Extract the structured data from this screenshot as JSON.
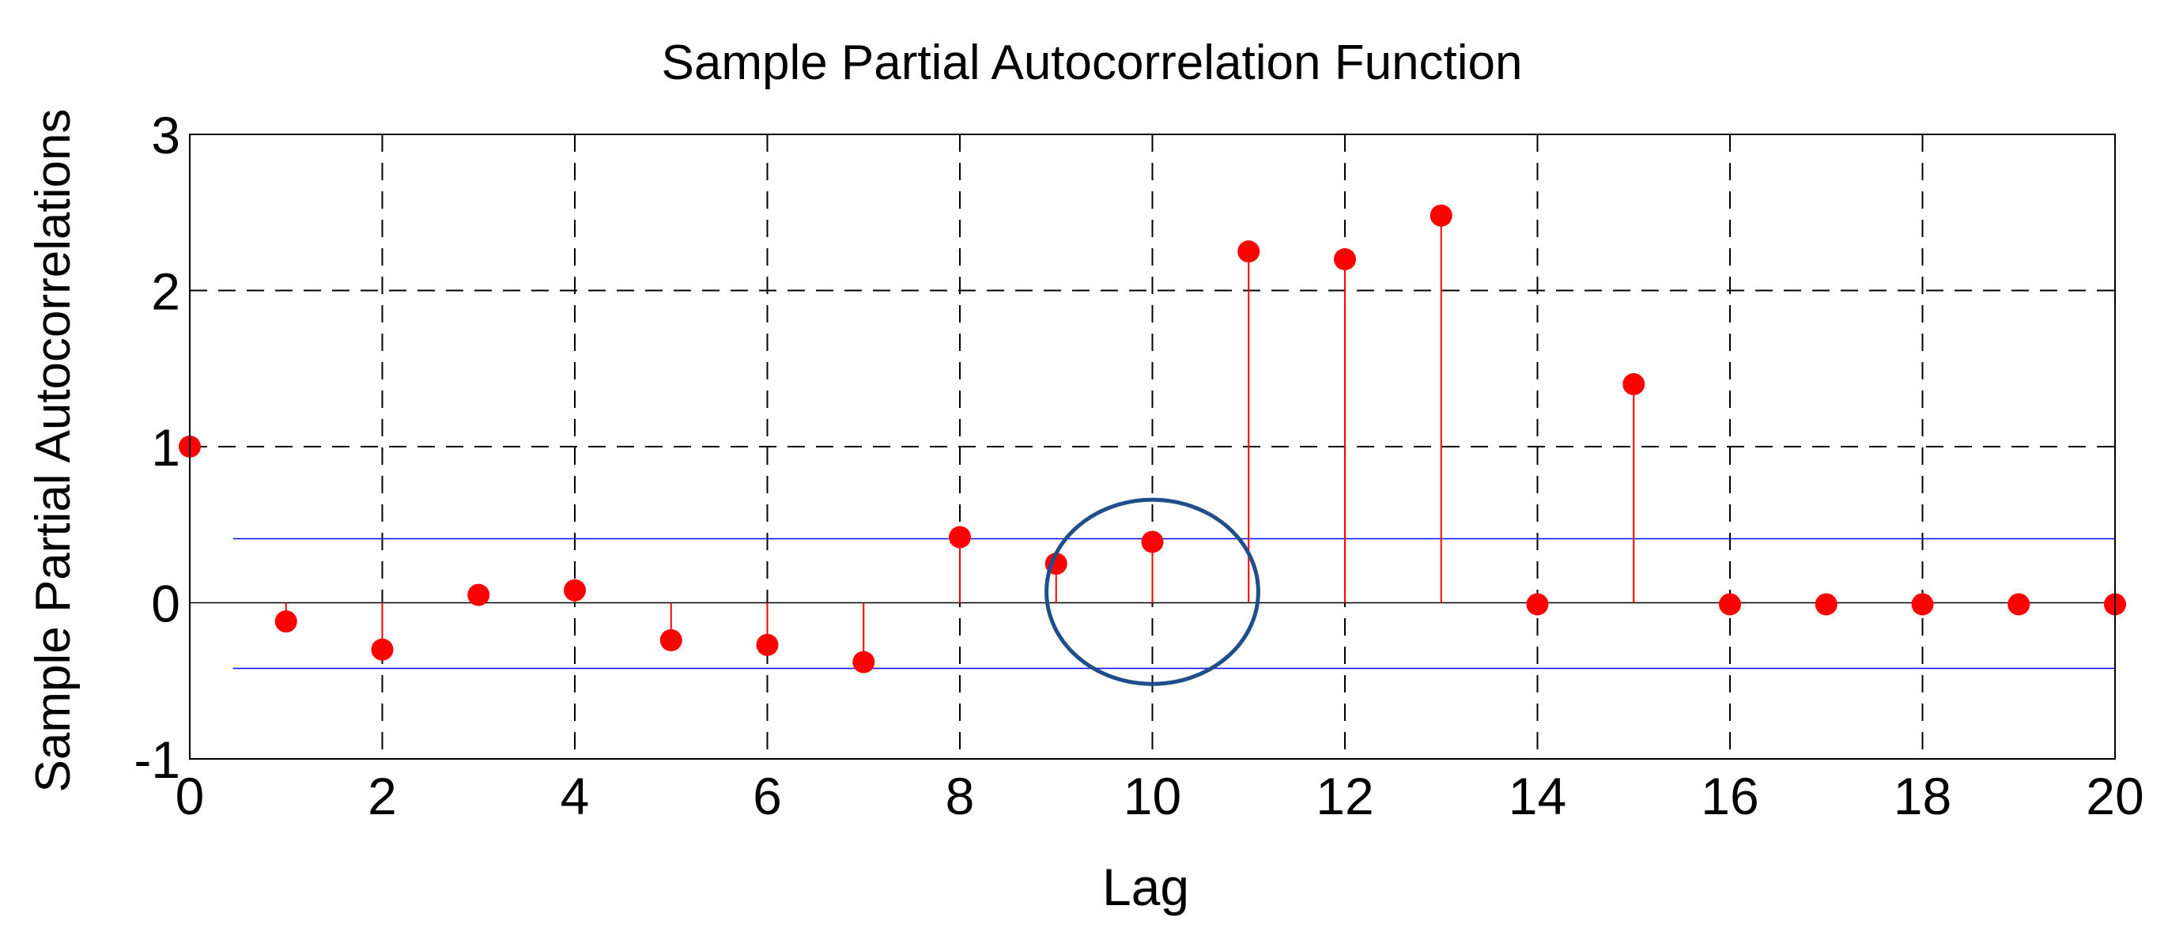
{
  "chart_data": {
    "type": "stem",
    "title": "Sample Partial Autocorrelation Function",
    "xlabel": "Lag",
    "ylabel": "Sample Partial Autocorrelations",
    "xlim": [
      0,
      20
    ],
    "ylim": [
      -1,
      3
    ],
    "xticks": [
      "0",
      "2",
      "4",
      "6",
      "8",
      "10",
      "12",
      "14",
      "16",
      "18",
      "20"
    ],
    "yticks": [
      "-1",
      "0",
      "1",
      "2",
      "3"
    ],
    "grid": true,
    "series": [
      {
        "x": [
          0,
          1,
          2,
          3,
          4,
          5,
          6,
          7,
          8,
          9,
          10,
          11,
          12,
          13,
          14,
          15,
          16,
          17,
          18,
          19,
          20
        ],
        "values": [
          1.0,
          -0.12,
          -0.3,
          0.05,
          0.08,
          -0.24,
          -0.27,
          -0.38,
          0.42,
          0.25,
          0.39,
          2.25,
          2.2,
          2.48,
          -0.01,
          1.4,
          -0.01,
          -0.01,
          -0.01,
          -0.01,
          -0.01
        ],
        "color": "#ff0000"
      }
    ],
    "confidence_bounds": {
      "upper": 0.41,
      "lower": -0.42,
      "xrange": [
        0.45,
        20
      ],
      "color": "#0000ff"
    },
    "annotation": {
      "shape": "ellipse",
      "center": [
        10,
        0.07
      ],
      "color": "#1f4e8c"
    }
  }
}
